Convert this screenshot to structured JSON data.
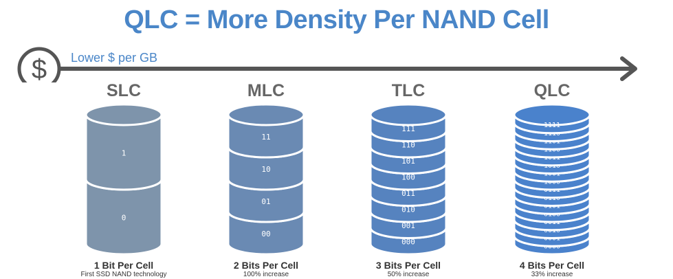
{
  "title": "QLC = More Density Per NAND Cell",
  "axis": {
    "label": "Lower $ per GB",
    "icon": "dollar-icon",
    "color": "#555555"
  },
  "columns": [
    {
      "name": "SLC",
      "caption": "1 Bit Per Cell",
      "subcaption": "First SSD NAND technology",
      "color": "#7e94ab",
      "cells": [
        "1",
        "0"
      ]
    },
    {
      "name": "MLC",
      "caption": "2 Bits Per Cell",
      "subcaption": "100% increase",
      "color": "#6a8ab3",
      "cells": [
        "11",
        "10",
        "01",
        "00"
      ]
    },
    {
      "name": "TLC",
      "caption": "3 Bits Per Cell",
      "subcaption": "50% increase",
      "color": "#5683bf",
      "cells": [
        "111",
        "110",
        "101",
        "100",
        "011",
        "010",
        "001",
        "000"
      ]
    },
    {
      "name": "QLC",
      "caption": "4 Bits Per Cell",
      "subcaption": "33% increase",
      "color": "#4a82cc",
      "cells": [
        "1111",
        "1110",
        "1101",
        "1100",
        "1011",
        "1010",
        "1001",
        "1000",
        "0111",
        "0110",
        "0101",
        "0100",
        "0011",
        "0010",
        "0001",
        "0000"
      ]
    }
  ]
}
